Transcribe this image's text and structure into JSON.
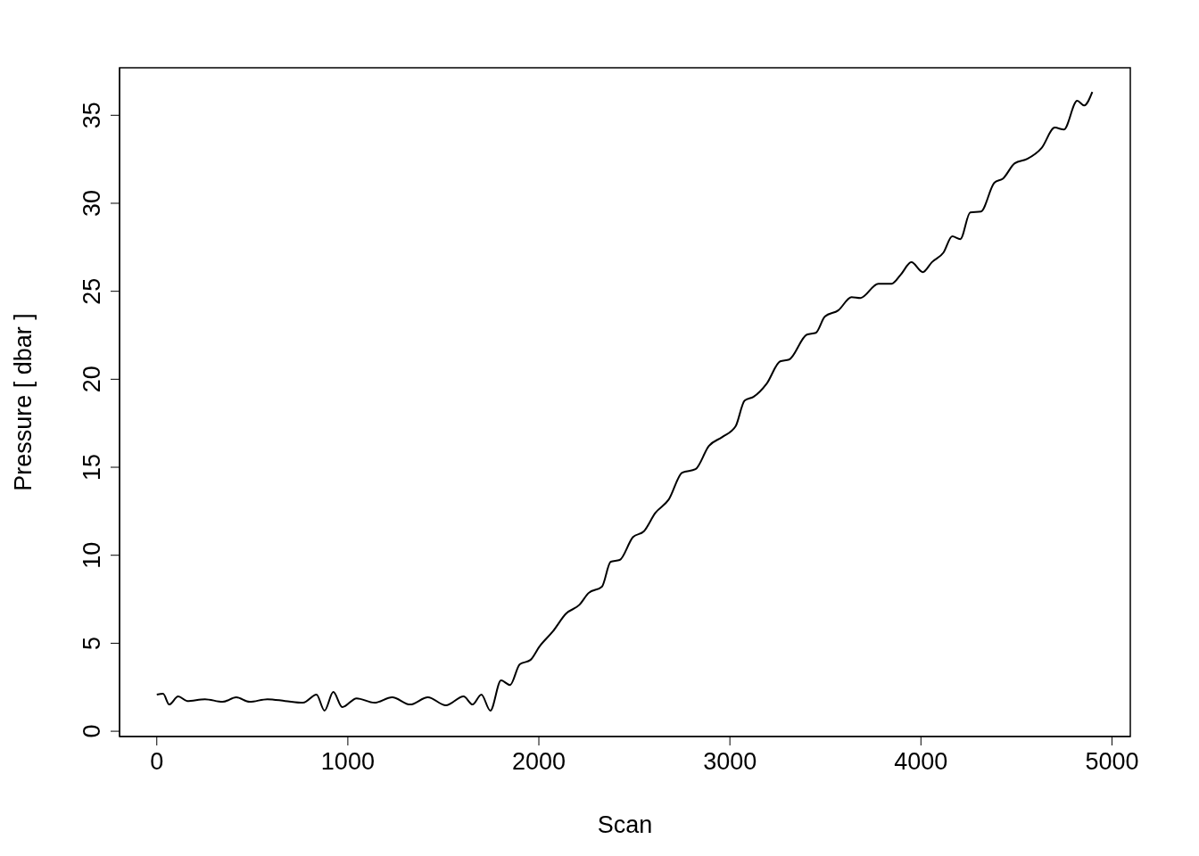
{
  "chart_data": {
    "type": "line",
    "xlabel": "Scan",
    "ylabel": "Pressure [ dbar ]",
    "x": [
      0,
      33,
      65,
      112,
      159,
      252,
      345,
      416,
      486,
      579,
      672,
      766,
      836,
      878,
      924,
      971,
      1046,
      1139,
      1232,
      1326,
      1419,
      1513,
      1606,
      1653,
      1699,
      1746,
      1802,
      1849,
      1900,
      1956,
      2003,
      2073,
      2143,
      2213,
      2260,
      2330,
      2376,
      2423,
      2493,
      2549,
      2610,
      2680,
      2750,
      2820,
      2890,
      2960,
      3030,
      3077,
      3123,
      3193,
      3263,
      3310,
      3403,
      3450,
      3497,
      3567,
      3637,
      3683,
      3777,
      3847,
      3894,
      3950,
      4010,
      4057,
      4118,
      4164,
      4206,
      4258,
      4314,
      4384,
      4430,
      4491,
      4557,
      4631,
      4701,
      4748,
      4818,
      4855,
      4897
    ],
    "series": [
      {
        "color": "#000000",
        "values": [
          2.08,
          2.13,
          1.52,
          1.98,
          1.72,
          1.82,
          1.67,
          1.93,
          1.67,
          1.82,
          1.72,
          1.62,
          2.08,
          1.17,
          2.23,
          1.37,
          1.87,
          1.62,
          1.93,
          1.52,
          1.93,
          1.47,
          1.98,
          1.52,
          2.08,
          1.17,
          2.89,
          2.63,
          3.8,
          4.05,
          4.81,
          5.67,
          6.69,
          7.19,
          7.85,
          8.21,
          9.63,
          9.73,
          11.04,
          11.35,
          12.41,
          13.17,
          14.69,
          14.89,
          16.21,
          16.72,
          17.33,
          18.79,
          19.0,
          19.76,
          21.02,
          21.12,
          22.54,
          22.64,
          23.56,
          23.91,
          24.67,
          24.62,
          25.43,
          25.43,
          25.94,
          26.65,
          26.09,
          26.65,
          27.2,
          28.12,
          27.96,
          29.48,
          29.53,
          31.16,
          31.41,
          32.27,
          32.52,
          33.13,
          34.3,
          34.19,
          35.82,
          35.56,
          36.32
        ]
      }
    ],
    "xlim": [
      -195,
      5096
    ],
    "ylim": [
      -0.3,
      37.7
    ],
    "xticks": [
      0,
      1000,
      2000,
      3000,
      4000,
      5000
    ],
    "yticks": [
      0,
      5,
      10,
      15,
      20,
      25,
      30,
      35
    ],
    "grid": false,
    "legend": false,
    "marker": "none",
    "line_style": "solid"
  }
}
